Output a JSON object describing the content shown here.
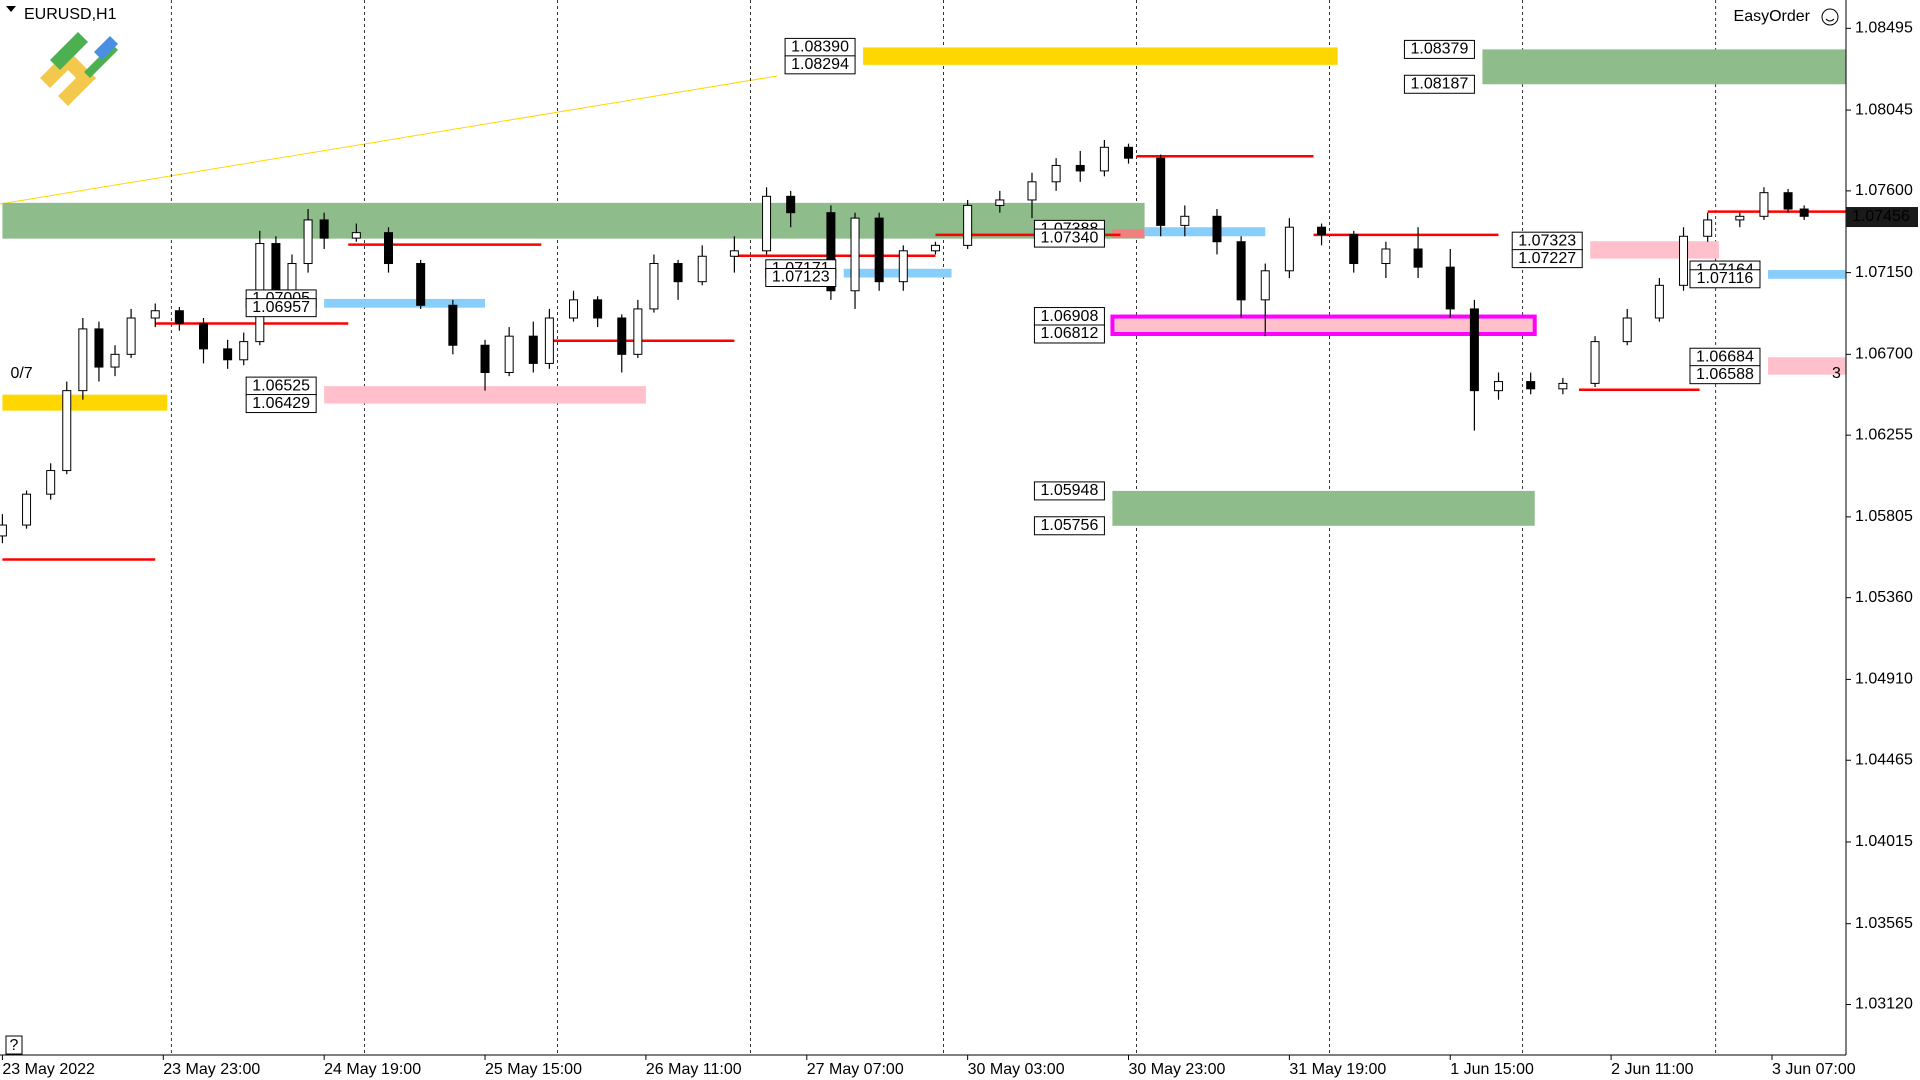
{
  "chart_data": {
    "type": "candlestick",
    "title": "EURUSD,H1",
    "panel_label": "EasyOrder",
    "help": "?",
    "xlim": [
      -0.3,
      229.2
    ],
    "ylim": [
      1.02842,
      1.08651
    ],
    "yticks": [
      1.08495,
      1.08045,
      {
        "value": 1.076,
        "label": "1.07600"
      },
      {
        "value": 1.0715,
        "label": "1.07150"
      },
      {
        "value": 1.067,
        "label": "1.06700"
      },
      1.06255,
      1.05805,
      {
        "value": 1.0536,
        "label": "1.05360"
      },
      {
        "value": 1.0491,
        "label": "1.04910"
      },
      1.04465,
      1.04015,
      1.03565,
      {
        "value": 1.0312,
        "label": "1.03120"
      }
    ],
    "xticks": [
      {
        "value": 0,
        "label": "23 May 2022"
      },
      {
        "value": 20,
        "label": "23 May 23:00"
      },
      {
        "value": 40,
        "label": "24 May 19:00"
      },
      {
        "value": 60,
        "label": "25 May 15:00"
      },
      {
        "value": 80,
        "label": "26 May 11:00"
      },
      {
        "value": 100,
        "label": "27 May 07:00"
      },
      {
        "value": 120,
        "label": "30 May 03:00"
      },
      {
        "value": 140,
        "label": "30 May 23:00"
      },
      {
        "value": 160,
        "label": "31 May 19:00"
      },
      {
        "value": 180,
        "label": "1 Jun 15:00"
      },
      {
        "value": 200,
        "label": "2 Jun 11:00"
      },
      {
        "value": 220,
        "label": "3 Jun 07:00"
      }
    ],
    "separators": [
      21,
      45,
      69,
      93,
      117,
      141,
      165,
      189,
      213
    ],
    "x": [
      0,
      3,
      6,
      8,
      10,
      12,
      14,
      16,
      19,
      22,
      25,
      28,
      30,
      32,
      34,
      36,
      38,
      40,
      44,
      48,
      52,
      56,
      60,
      63,
      66,
      68,
      71,
      74,
      77,
      79,
      81,
      84,
      87,
      91,
      95,
      98,
      103,
      106,
      109,
      112,
      116,
      120,
      124,
      128,
      131,
      134,
      137,
      140,
      144,
      147,
      151,
      154,
      157,
      160,
      164,
      168,
      172,
      176,
      180,
      183,
      186,
      190,
      194,
      198,
      202,
      206,
      209,
      212,
      216,
      219,
      222,
      224
    ],
    "open": [
      1.057,
      1.0576,
      1.0593,
      1.0606,
      1.065,
      1.0684,
      1.0663,
      1.067,
      1.069,
      1.0694,
      1.0687,
      1.0673,
      1.0667,
      1.0677,
      1.0731,
      1.0704,
      1.072,
      1.0744,
      1.0734,
      1.0737,
      1.072,
      1.0697,
      1.0675,
      1.066,
      1.068,
      1.0665,
      1.069,
      1.07,
      1.069,
      1.067,
      1.0695,
      1.072,
      1.071,
      1.0724,
      1.0727,
      1.0757,
      1.0748,
      1.0705,
      1.0745,
      1.071,
      1.0727,
      1.073,
      1.0752,
      1.0755,
      1.0765,
      1.0774,
      1.0771,
      1.0784,
      1.0778,
      1.0741,
      1.0746,
      1.0732,
      1.07,
      1.0716,
      1.074,
      1.0736,
      1.072,
      1.0728,
      1.0718,
      1.0695,
      1.065,
      1.0655,
      1.0651,
      1.0654,
      1.0677,
      1.069,
      1.0708,
      1.0735,
      1.0744,
      1.0746,
      1.0759,
      1.075
    ],
    "high": [
      1.0582,
      1.0595,
      1.061,
      1.0655,
      1.069,
      1.0688,
      1.0675,
      1.0695,
      1.0698,
      1.0696,
      1.069,
      1.0678,
      1.0682,
      1.0738,
      1.0735,
      1.0725,
      1.075,
      1.0748,
      1.0742,
      1.074,
      1.0722,
      1.07,
      1.0678,
      1.0685,
      1.0688,
      1.0695,
      1.0705,
      1.0702,
      1.0692,
      1.07,
      1.0725,
      1.0722,
      1.073,
      1.0735,
      1.0762,
      1.076,
      1.0752,
      1.0748,
      1.0748,
      1.073,
      1.0732,
      1.0755,
      1.076,
      1.077,
      1.0778,
      1.0782,
      1.0788,
      1.0786,
      1.078,
      1.0752,
      1.075,
      1.0735,
      1.072,
      1.0745,
      1.0742,
      1.0738,
      1.0732,
      1.074,
      1.0728,
      1.07,
      1.066,
      1.066,
      1.0657,
      1.068,
      1.0695,
      1.0712,
      1.074,
      1.0748,
      1.0748,
      1.0762,
      1.0761,
      1.0752
    ],
    "low": [
      1.0566,
      1.0574,
      1.059,
      1.0604,
      1.0645,
      1.0655,
      1.0658,
      1.0668,
      1.0685,
      1.0683,
      1.0665,
      1.0662,
      1.0664,
      1.0675,
      1.07,
      1.0698,
      1.0715,
      1.0728,
      1.0732,
      1.0715,
      1.0695,
      1.067,
      1.065,
      1.0658,
      1.066,
      1.0662,
      1.0688,
      1.0685,
      1.066,
      1.0668,
      1.0693,
      1.07,
      1.0708,
      1.0715,
      1.0725,
      1.074,
      1.07,
      1.0695,
      1.0705,
      1.0705,
      1.0725,
      1.0728,
      1.0748,
      1.0745,
      1.076,
      1.0765,
      1.0768,
      1.0775,
      1.0735,
      1.0735,
      1.0725,
      1.069,
      1.068,
      1.0712,
      1.073,
      1.0715,
      1.0712,
      1.0712,
      1.069,
      1.0628,
      1.0645,
      1.0648,
      1.0648,
      1.0652,
      1.0675,
      1.0688,
      1.0705,
      1.0732,
      1.074,
      1.0744,
      1.0748,
      1.0744
    ],
    "close": [
      1.0576,
      1.0593,
      1.0606,
      1.065,
      1.0684,
      1.0663,
      1.067,
      1.069,
      1.0694,
      1.0687,
      1.0673,
      1.0667,
      1.0677,
      1.0731,
      1.0704,
      1.072,
      1.0744,
      1.0734,
      1.0737,
      1.072,
      1.0697,
      1.0675,
      1.066,
      1.068,
      1.0665,
      1.069,
      1.07,
      1.069,
      1.067,
      1.0695,
      1.072,
      1.071,
      1.0724,
      1.0727,
      1.0757,
      1.0748,
      1.0705,
      1.0745,
      1.071,
      1.0727,
      1.073,
      1.0752,
      1.0755,
      1.0765,
      1.0774,
      1.0771,
      1.0784,
      1.0778,
      1.0741,
      1.0746,
      1.0732,
      1.07,
      1.0716,
      1.074,
      1.0736,
      1.072,
      1.0728,
      1.0718,
      1.0695,
      1.065,
      1.0655,
      1.0651,
      1.0654,
      1.0677,
      1.069,
      1.0708,
      1.0735,
      1.0744,
      1.0746,
      1.0759,
      1.075,
      1.0746
    ],
    "zones": [
      {
        "x": [
          0,
          142
        ],
        "top": 1.07534,
        "bottom": 1.07337,
        "color": "#8fbc8b"
      },
      {
        "x": [
          107,
          166
        ],
        "top": 1.0839,
        "bottom": 1.08294,
        "color": "#ffd700",
        "labels": [
          "1.08390",
          "1.08294"
        ]
      },
      {
        "x": [
          184,
          231
        ],
        "top": 1.08379,
        "bottom": 1.08187,
        "color": "#8fbc8b",
        "labels": [
          "1.08379",
          "1.08187"
        ]
      },
      {
        "x": [
          138,
          142
        ],
        "top": 1.07388,
        "bottom": 1.0734,
        "color": "#f08080",
        "labels": [
          "1.07388",
          "1.07340"
        ]
      },
      {
        "x": [
          142,
          157
        ],
        "top": 1.074,
        "bottom": 1.0735,
        "color": "#87cefa"
      },
      {
        "x": [
          138,
          190.5
        ],
        "top": 1.06908,
        "bottom": 1.06812,
        "color": "#ffc0cb",
        "border": "#ff00ff",
        "labels": [
          "1.06908",
          "1.06812"
        ]
      },
      {
        "x": [
          138,
          190.5
        ],
        "top": 1.05948,
        "bottom": 1.05756,
        "color": "#8fbc8b",
        "labels": [
          "1.05948",
          "1.05756"
        ]
      },
      {
        "x": [
          40,
          80
        ],
        "top": 1.06525,
        "bottom": 1.06429,
        "color": "#ffc0cb",
        "labels": [
          "1.06525",
          "1.06429"
        ]
      },
      {
        "x": [
          40,
          60
        ],
        "top": 1.07005,
        "bottom": 1.06957,
        "color": "#87cefa",
        "labels": [
          "1.07005",
          "1.06957"
        ]
      },
      {
        "x": [
          104.6,
          118
        ],
        "top": 1.07171,
        "bottom": 1.07123,
        "color": "#87cefa",
        "labels": [
          "1.07171",
          "1.07123"
        ]
      },
      {
        "x": [
          197.4,
          213.4
        ],
        "top": 1.07323,
        "bottom": 1.07227,
        "color": "#ffc0cb",
        "labels": [
          "1.07323",
          "1.07227"
        ]
      },
      {
        "x": [
          219.5,
          231
        ],
        "top": 1.07164,
        "bottom": 1.07116,
        "color": "#87cefa",
        "labels": [
          "1.07164",
          "1.07116"
        ]
      },
      {
        "x": [
          219.5,
          231
        ],
        "top": 1.06684,
        "bottom": 1.06588,
        "color": "#ffc0cb",
        "labels": [
          "1.06684",
          "1.06588"
        ]
      },
      {
        "x": [
          0,
          20.5
        ],
        "top": 1.06478,
        "bottom": 1.0639,
        "color": "#ffd700"
      }
    ],
    "levels": [
      {
        "x": [
          0,
          19
        ],
        "price": 1.0557
      },
      {
        "x": [
          19,
          43
        ],
        "price": 1.0687
      },
      {
        "x": [
          43,
          67
        ],
        "price": 1.07304
      },
      {
        "x": [
          68,
          91
        ],
        "price": 1.06775
      },
      {
        "x": [
          91,
          116
        ],
        "price": 1.07243
      },
      {
        "x": [
          116,
          139
        ],
        "price": 1.07358
      },
      {
        "x": [
          141,
          163
        ],
        "price": 1.07791
      },
      {
        "x": [
          163,
          186
        ],
        "price": 1.07358
      },
      {
        "x": [
          196,
          211
        ],
        "price": 1.06505
      },
      {
        "x": [
          212,
          229.2
        ],
        "price": 1.07486
      }
    ],
    "level_color": "#ff0000",
    "annotations": [
      {
        "text": "0/7",
        "bar": 1,
        "price": 1.06593
      },
      {
        "text": "3",
        "bar": 228,
        "price": 1.06593
      }
    ],
    "annotation_color": "#ff4500",
    "price": {
      "value": 1.07456,
      "label": "1.07456"
    }
  }
}
